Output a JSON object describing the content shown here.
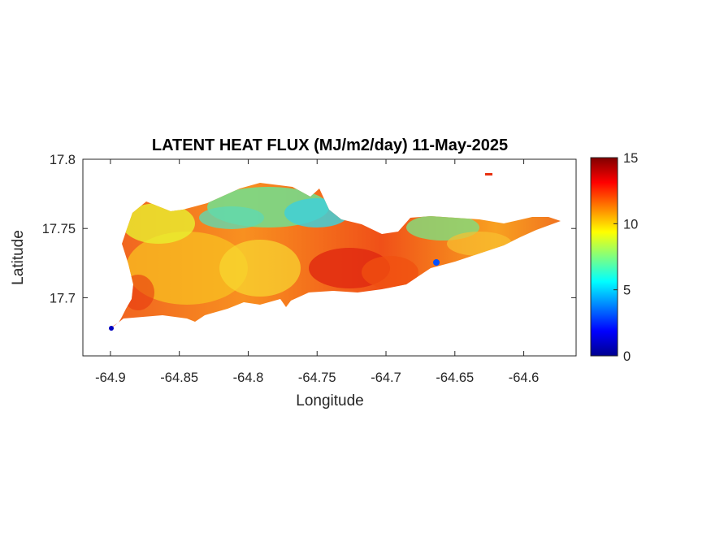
{
  "map": {
    "title": "LATENT HEAT FLUX (MJ/m2/day) 11-May-2025",
    "xlabel": "Longitude",
    "ylabel": "Latitude",
    "xticks": [
      -64.9,
      -64.85,
      -64.8,
      -64.75,
      -64.7,
      -64.65,
      -64.6
    ],
    "xtick_labels": [
      "-64.9",
      "-64.85",
      "-64.8",
      "-64.75",
      "-64.7",
      "-64.65",
      "-64.6"
    ],
    "yticks": [
      17.8,
      17.75,
      17.7
    ],
    "ytick_labels": [
      "17.8",
      "17.75",
      "17.7"
    ],
    "xlim": [
      -64.92,
      -64.562
    ],
    "ylim": [
      17.658,
      17.8
    ],
    "colorbar": {
      "colormap": "jet",
      "range": [
        0,
        15
      ],
      "ticks": [
        0,
        5,
        10,
        15
      ],
      "tick_labels": [
        "0",
        "5",
        "10",
        "15"
      ]
    }
  }
}
